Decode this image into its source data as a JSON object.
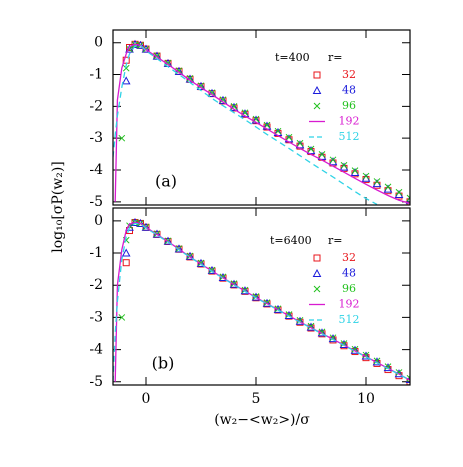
{
  "chart_data": [
    {
      "type": "scatter",
      "ylabel": "log₁₀[σP(w₂)]",
      "panel_label": "(a)",
      "annotation": "t=400",
      "legend_title": "r=",
      "xlim": [
        -1.5,
        12
      ],
      "ylim": [
        -5.1,
        0.4
      ],
      "xticks": [
        0,
        5,
        10
      ],
      "yticks": [
        0,
        -1,
        -2,
        -3,
        -4,
        -5
      ],
      "x": [
        -1.5,
        -1.4,
        -1.3,
        -1.1,
        -0.9,
        -0.75,
        -0.5,
        -0.25,
        0,
        0.5,
        1,
        1.5,
        2,
        2.5,
        3,
        3.5,
        4,
        4.5,
        5,
        5.5,
        6,
        6.5,
        7,
        7.5,
        8,
        8.5,
        9,
        9.5,
        10,
        10.5,
        11,
        11.5,
        12
      ],
      "series": [
        {
          "name": "32",
          "color": "#e8151b",
          "marker": "square",
          "values": [
            null,
            null,
            null,
            null,
            -0.55,
            -0.15,
            -0.05,
            -0.08,
            -0.2,
            -0.42,
            -0.65,
            -0.9,
            -1.15,
            -1.38,
            -1.6,
            -1.83,
            -2.05,
            -2.25,
            -2.45,
            -2.65,
            -2.85,
            -3.05,
            -3.25,
            -3.42,
            -3.6,
            -3.78,
            -3.95,
            -4.12,
            -4.3,
            -4.48,
            -4.65,
            -4.82,
            -5.0
          ]
        },
        {
          "name": "48",
          "color": "#1a1adb",
          "marker": "triangle",
          "values": [
            null,
            null,
            null,
            null,
            -1.2,
            -0.2,
            -0.05,
            -0.08,
            -0.2,
            -0.42,
            -0.65,
            -0.9,
            -1.14,
            -1.37,
            -1.59,
            -1.81,
            -2.03,
            -2.23,
            -2.43,
            -2.62,
            -2.82,
            -3.02,
            -3.21,
            -3.39,
            -3.57,
            -3.74,
            -3.91,
            -4.08,
            -4.26,
            -4.43,
            -4.6,
            -4.77,
            -4.95
          ]
        },
        {
          "name": "96",
          "color": "#22c11e",
          "marker": "cross",
          "values": [
            null,
            null,
            null,
            -3.0,
            -0.8,
            -0.2,
            -0.06,
            -0.08,
            -0.2,
            -0.41,
            -0.64,
            -0.88,
            -1.12,
            -1.35,
            -1.57,
            -1.79,
            -2.0,
            -2.2,
            -2.4,
            -2.59,
            -2.78,
            -2.97,
            -3.16,
            -3.34,
            -3.51,
            -3.68,
            -3.85,
            -4.02,
            -4.19,
            -4.36,
            -4.53,
            -4.7,
            -4.88
          ]
        },
        {
          "name": "192",
          "color": "#d81bd0",
          "line": "solid",
          "values": [
            null,
            -5.0,
            -1.8,
            -0.8,
            -0.35,
            -0.12,
            -0.05,
            -0.08,
            -0.22,
            -0.45,
            -0.68,
            -0.93,
            -1.18,
            -1.41,
            -1.63,
            -1.86,
            -2.09,
            -2.3,
            -2.5,
            -2.71,
            -2.92,
            -3.12,
            -3.32,
            -3.51,
            -3.69,
            -3.88,
            -4.07,
            -4.26,
            -4.45,
            -4.63,
            -4.8,
            -4.95,
            -5.05
          ]
        },
        {
          "name": "512",
          "color": "#2fd3e6",
          "line": "dashed",
          "values": [
            -3.6,
            -2.9,
            -2.3,
            -1.4,
            -0.7,
            -0.35,
            -0.1,
            -0.1,
            -0.25,
            -0.5,
            -0.75,
            -1.0,
            -1.25,
            -1.5,
            -1.75,
            -1.98,
            -2.2,
            -2.42,
            -2.65,
            -2.88,
            -3.1,
            -3.32,
            -3.55,
            -3.78,
            -4.0,
            -4.22,
            -4.45,
            -4.68,
            -4.9,
            -5.08,
            null,
            null,
            null
          ]
        }
      ]
    },
    {
      "type": "scatter",
      "xlabel": "(w₂−<w₂>)/σ",
      "panel_label": "(b)",
      "annotation": "t=6400",
      "legend_title": "r=",
      "xlim": [
        -1.5,
        12
      ],
      "ylim": [
        -5.1,
        0.4
      ],
      "xticks": [
        0,
        5,
        10
      ],
      "yticks": [
        0,
        -1,
        -2,
        -3,
        -4,
        -5
      ],
      "x": [
        -1.5,
        -1.4,
        -1.3,
        -1.1,
        -0.9,
        -0.75,
        -0.5,
        -0.25,
        0,
        0.5,
        1,
        1.5,
        2,
        2.5,
        3,
        3.5,
        4,
        4.5,
        5,
        5.5,
        6,
        6.5,
        7,
        7.5,
        8,
        8.5,
        9,
        9.5,
        10,
        10.5,
        11,
        11.5,
        12
      ],
      "series": [
        {
          "name": "32",
          "color": "#e8151b",
          "marker": "square",
          "values": [
            null,
            null,
            null,
            null,
            -1.3,
            -0.3,
            -0.05,
            -0.08,
            -0.2,
            -0.42,
            -0.64,
            -0.88,
            -1.12,
            -1.34,
            -1.56,
            -1.78,
            -1.99,
            -2.19,
            -2.39,
            -2.58,
            -2.77,
            -2.96,
            -3.15,
            -3.33,
            -3.51,
            -3.7,
            -3.88,
            -4.06,
            -4.25,
            -4.43,
            -4.62,
            -4.81,
            -5.0
          ]
        },
        {
          "name": "48",
          "color": "#1a1adb",
          "marker": "triangle",
          "values": [
            null,
            null,
            null,
            null,
            -1.0,
            -0.2,
            -0.05,
            -0.08,
            -0.2,
            -0.41,
            -0.63,
            -0.87,
            -1.1,
            -1.32,
            -1.54,
            -1.76,
            -1.97,
            -2.17,
            -2.37,
            -2.56,
            -2.75,
            -2.94,
            -3.12,
            -3.3,
            -3.48,
            -3.66,
            -3.84,
            -4.02,
            -4.2,
            -4.38,
            -4.56,
            -4.75,
            -4.93
          ]
        },
        {
          "name": "96",
          "color": "#22c11e",
          "marker": "cross",
          "values": [
            null,
            null,
            null,
            -3.0,
            -0.6,
            -0.15,
            -0.05,
            -0.08,
            -0.19,
            -0.4,
            -0.62,
            -0.86,
            -1.09,
            -1.31,
            -1.53,
            -1.74,
            -1.95,
            -2.15,
            -2.35,
            -2.54,
            -2.73,
            -2.91,
            -3.09,
            -3.27,
            -3.45,
            -3.63,
            -3.81,
            -3.99,
            -4.17,
            -4.35,
            -4.53,
            -4.71,
            -4.89
          ]
        },
        {
          "name": "192",
          "color": "#d81bd0",
          "line": "solid",
          "values": [
            null,
            -5.0,
            -2.0,
            -0.9,
            -0.3,
            -0.1,
            -0.05,
            -0.08,
            -0.2,
            -0.42,
            -0.64,
            -0.88,
            -1.12,
            -1.34,
            -1.56,
            -1.77,
            -1.98,
            -2.18,
            -2.38,
            -2.57,
            -2.76,
            -2.95,
            -3.14,
            -3.32,
            -3.5,
            -3.68,
            -3.86,
            -4.04,
            -4.22,
            -4.4,
            -4.58,
            -4.76,
            -4.95
          ]
        },
        {
          "name": "512",
          "color": "#2fd3e6",
          "line": "dashed",
          "values": [
            -5.0,
            -3.5,
            -2.5,
            -1.2,
            -0.5,
            -0.2,
            -0.08,
            -0.1,
            -0.22,
            -0.44,
            -0.66,
            -0.9,
            -1.13,
            -1.35,
            -1.57,
            -1.78,
            -1.99,
            -2.19,
            -2.39,
            -2.58,
            -2.77,
            -2.96,
            -3.15,
            -3.33,
            -3.51,
            -3.69,
            -3.87,
            -4.05,
            -4.23,
            -4.41,
            -4.59,
            -4.77,
            -4.95
          ]
        }
      ]
    }
  ]
}
